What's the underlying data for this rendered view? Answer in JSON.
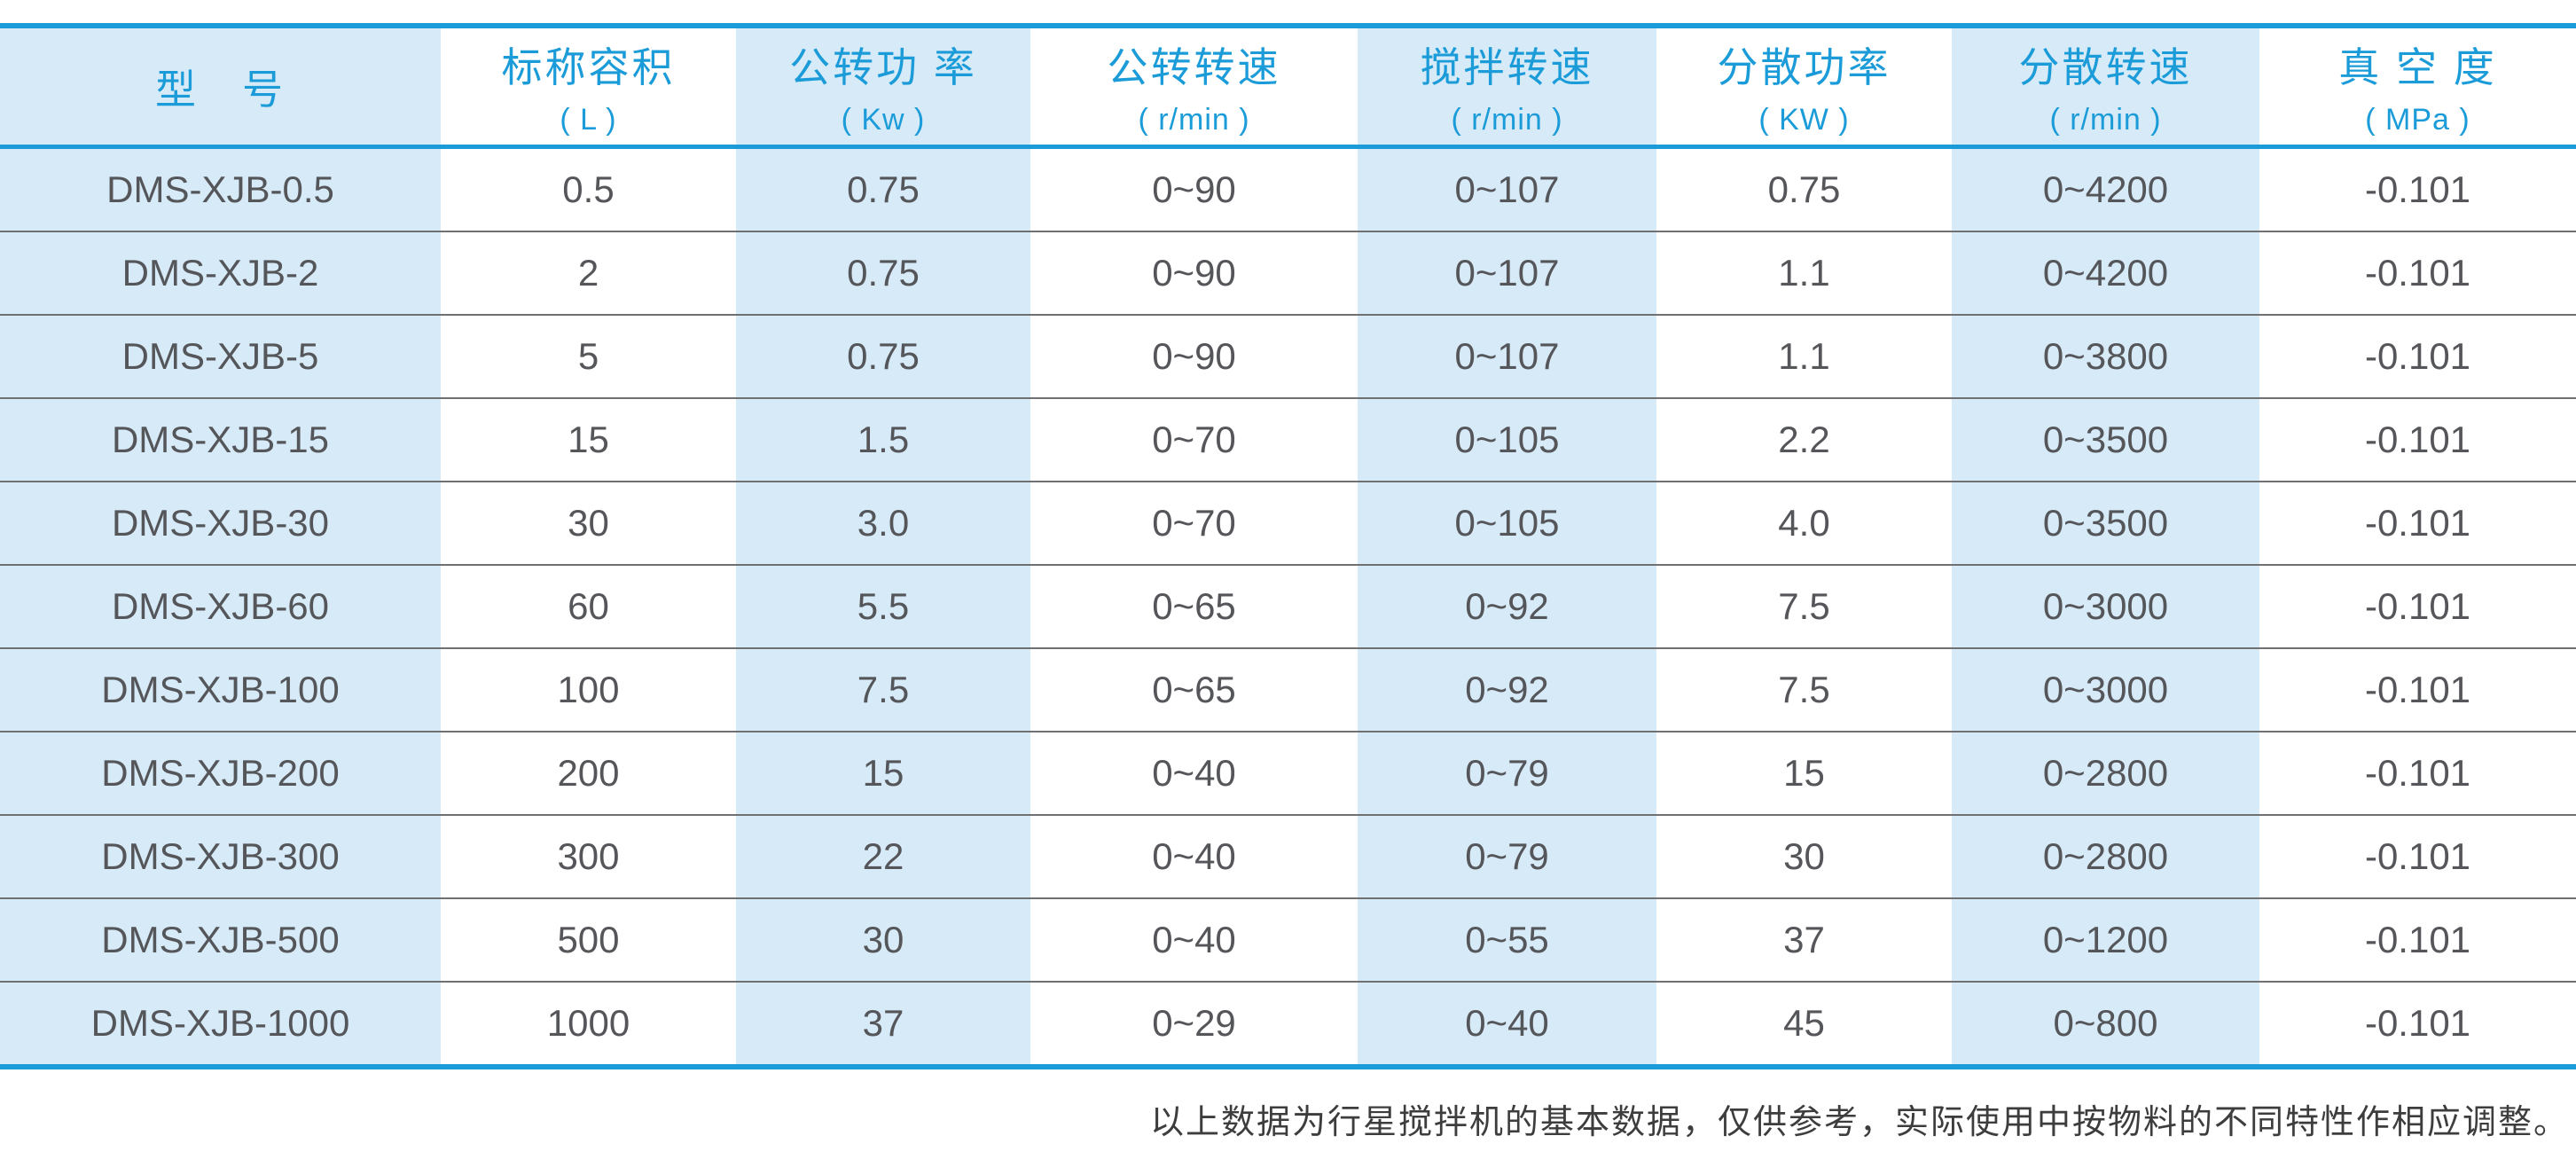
{
  "chart_data": {
    "type": "table",
    "columns": [
      {
        "label": "型　号",
        "unit": ""
      },
      {
        "label": "标称容积",
        "unit": "( L )"
      },
      {
        "label": "公转功 率",
        "unit": "( Kw )"
      },
      {
        "label": "公转转速",
        "unit": "( r/min )"
      },
      {
        "label": "搅拌转速",
        "unit": "( r/min )"
      },
      {
        "label": "分散功率",
        "unit": "( KW )"
      },
      {
        "label": "分散转速",
        "unit": "( r/min )"
      },
      {
        "label": "真 空 度",
        "unit": "( MPa )"
      }
    ],
    "rows": [
      {
        "cells": [
          "DMS-XJB-0.5",
          "0.5",
          "0.75",
          "0~90",
          "0~107",
          "0.75",
          "0~4200",
          "-0.101"
        ]
      },
      {
        "cells": [
          "DMS-XJB-2",
          "2",
          "0.75",
          "0~90",
          "0~107",
          "1.1",
          "0~4200",
          "-0.101"
        ]
      },
      {
        "cells": [
          "DMS-XJB-5",
          "5",
          "0.75",
          "0~90",
          "0~107",
          "1.1",
          "0~3800",
          "-0.101"
        ]
      },
      {
        "cells": [
          "DMS-XJB-15",
          "15",
          "1.5",
          "0~70",
          "0~105",
          "2.2",
          "0~3500",
          "-0.101"
        ]
      },
      {
        "cells": [
          "DMS-XJB-30",
          "30",
          "3.0",
          "0~70",
          "0~105",
          "4.0",
          "0~3500",
          "-0.101"
        ]
      },
      {
        "cells": [
          "DMS-XJB-60",
          "60",
          "5.5",
          "0~65",
          "0~92",
          "7.5",
          "0~3000",
          "-0.101"
        ]
      },
      {
        "cells": [
          "DMS-XJB-100",
          "100",
          "7.5",
          "0~65",
          "0~92",
          "7.5",
          "0~3000",
          "-0.101"
        ]
      },
      {
        "cells": [
          "DMS-XJB-200",
          "200",
          "15",
          "0~40",
          "0~79",
          "15",
          "0~2800",
          "-0.101"
        ]
      },
      {
        "cells": [
          "DMS-XJB-300",
          "300",
          "22",
          "0~40",
          "0~79",
          "30",
          "0~2800",
          "-0.101"
        ]
      },
      {
        "cells": [
          "DMS-XJB-500",
          "500",
          "30",
          "0~40",
          "0~55",
          "37",
          "0~1200",
          "-0.101"
        ]
      },
      {
        "cells": [
          "DMS-XJB-1000",
          "1000",
          "37",
          "0~29",
          "0~40",
          "45",
          "0~800",
          "-0.101"
        ]
      }
    ]
  },
  "footer": {
    "note": "以上数据为行星搅拌机的基本数据，仅供参考，实际使用中按物料的不同特性作相应调整。"
  },
  "colors": {
    "accent_blue": "#1b9cd9",
    "cell_blue": "#d7eaf8",
    "data_text": "#55565a",
    "separator_gray": "#6f7072",
    "footnote_text": "#3d3d3d"
  }
}
